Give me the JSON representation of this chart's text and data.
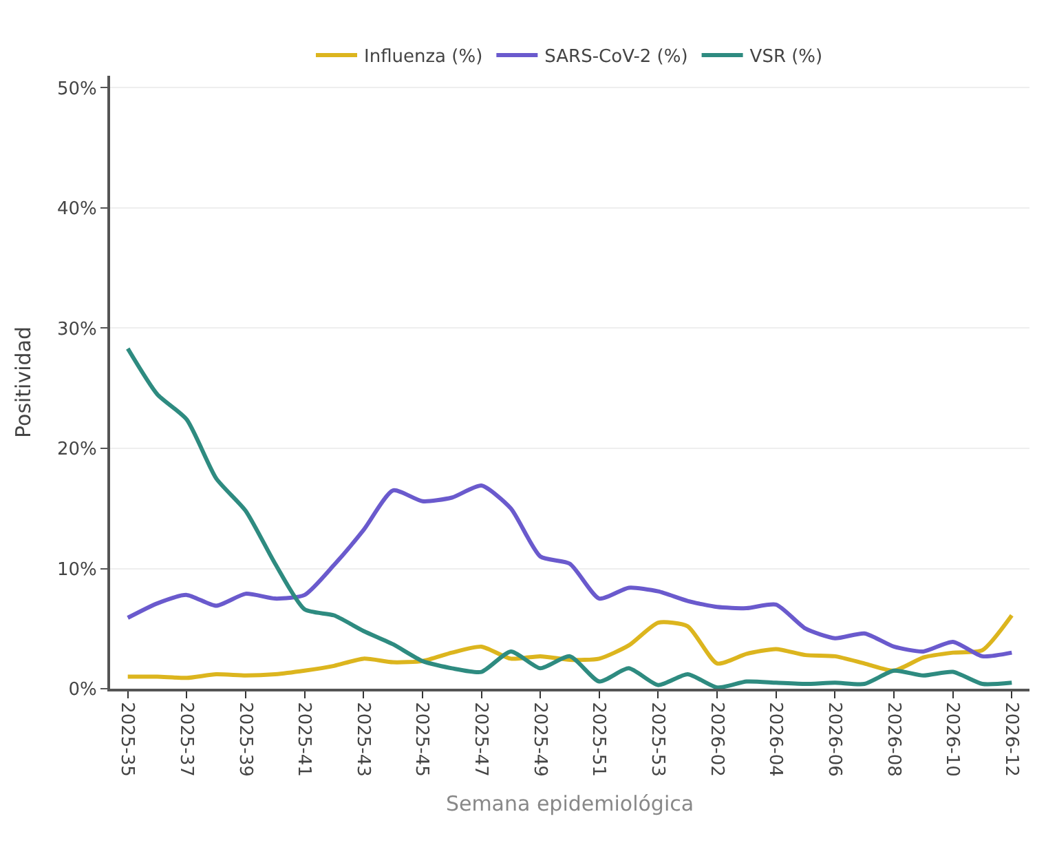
{
  "chart_data": {
    "type": "line",
    "xlabel": "Semana epidemiológica",
    "ylabel": "Positividad",
    "categories": [
      "2025-35",
      null,
      "2025-37",
      null,
      "2025-39",
      null,
      "2025-41",
      null,
      "2025-43",
      null,
      "2025-45",
      null,
      "2025-47",
      null,
      "2025-49",
      null,
      "2025-51",
      null,
      "2025-53",
      null,
      "2026-02",
      null,
      "2026-04",
      null,
      "2026-06",
      null,
      "2026-08",
      null,
      "2026-10",
      null,
      "2026-12"
    ],
    "series": [
      {
        "name": "Influenza (%)",
        "color": "#dcb51e",
        "values": [
          1.0,
          1.0,
          0.9,
          1.2,
          1.1,
          1.2,
          1.5,
          1.9,
          2.5,
          2.2,
          2.3,
          3.0,
          3.5,
          2.5,
          2.7,
          2.4,
          2.5,
          3.6,
          5.5,
          5.2,
          2.1,
          2.9,
          3.3,
          2.8,
          2.7,
          2.1,
          1.5,
          2.6,
          3.0,
          3.2,
          6.1
        ]
      },
      {
        "name": "SARS-CoV-2 (%)",
        "color": "#6a5acd",
        "values": [
          5.9,
          7.1,
          7.8,
          6.9,
          7.9,
          7.5,
          7.8,
          10.3,
          13.2,
          16.5,
          15.6,
          15.9,
          16.9,
          15.0,
          11.0,
          10.4,
          7.5,
          8.4,
          8.1,
          7.3,
          6.8,
          6.7,
          7.0,
          5.0,
          4.2,
          4.6,
          3.5,
          3.1,
          3.9,
          2.7,
          3.0
        ]
      },
      {
        "name": "VSR (%)",
        "color": "#2e8b80",
        "values": [
          28.3,
          24.5,
          22.4,
          17.5,
          14.8,
          10.4,
          6.6,
          6.1,
          4.8,
          3.7,
          2.3,
          1.7,
          1.4,
          3.1,
          1.7,
          2.7,
          0.6,
          1.7,
          0.3,
          1.2,
          0.1,
          0.6,
          0.5,
          0.4,
          0.5,
          0.4,
          1.5,
          1.1,
          1.4,
          0.4,
          0.5
        ]
      }
    ],
    "ylim": [
      0,
      51
    ],
    "yticks": [
      {
        "value": 0,
        "label": "0%"
      },
      {
        "value": 10,
        "label": "10%"
      },
      {
        "value": 20,
        "label": "20%"
      },
      {
        "value": 30,
        "label": "30%"
      },
      {
        "value": 40,
        "label": "40%"
      },
      {
        "value": 50,
        "label": "50%"
      }
    ],
    "grid": "y",
    "legend": "top",
    "marker": "none",
    "line_style": "solid"
  }
}
